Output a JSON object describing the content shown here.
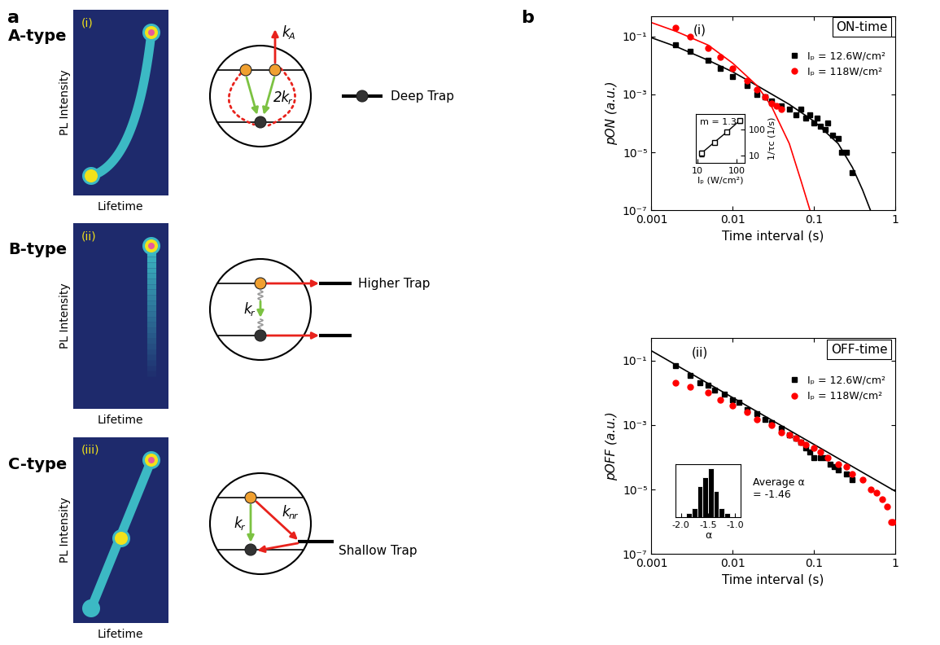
{
  "labels": [
    "a",
    "b"
  ],
  "panel_a": {
    "rows": [
      {
        "type_label": "A-type",
        "index": "(i)",
        "y_label": "PL Intensity",
        "x_label": "Lifetime",
        "rates": [
          {
            "main": "k",
            "sub": "A"
          },
          {
            "main": "2k",
            "sub": "r"
          }
        ],
        "trap": "Deep Trap"
      },
      {
        "type_label": "B-type",
        "index": "(ii)",
        "y_label": "PL Intensity",
        "x_label": "Lifetime",
        "rates": [
          {
            "main": "k",
            "sub": "r"
          }
        ],
        "trap": "Higher Trap"
      },
      {
        "type_label": "C-type",
        "index": "(iii)",
        "y_label": "PL Intensity",
        "x_label": "Lifetime",
        "rates": [
          {
            "main": "k",
            "sub": "r"
          },
          {
            "main": "k",
            "sub": "nr"
          }
        ],
        "trap": "Shallow Trap"
      }
    ]
  },
  "chart_data": [
    {
      "type": "scatter",
      "title": "ON-time",
      "panel_index": "(i)",
      "x_label": "Time interval (s)",
      "y_label": "pON (a.u.)",
      "log": true,
      "xlim": [
        0.001,
        1
      ],
      "ylim": [
        1e-07,
        0.5
      ],
      "xticks": [
        0.001,
        0.01,
        0.1,
        1
      ],
      "yticks": [
        {
          "value": 1e-07,
          "label": "10⁻⁷"
        },
        {
          "value": 1e-05,
          "label": "10⁻⁵"
        },
        {
          "value": 0.001,
          "label": "10⁻³"
        },
        {
          "value": 0.1,
          "label": "10⁻¹"
        }
      ],
      "legend": "upper right",
      "series": [
        {
          "name": "Iₚ = 12.6W/cm²",
          "color": "#000000",
          "marker": "square",
          "x": [
            0.002,
            0.003,
            0.005,
            0.007,
            0.01,
            0.015,
            0.02,
            0.025,
            0.03,
            0.04,
            0.05,
            0.06,
            0.07,
            0.08,
            0.09,
            0.1,
            0.11,
            0.12,
            0.14,
            0.15,
            0.17,
            0.2,
            0.22,
            0.25,
            0.3
          ],
          "values": [
            0.05,
            0.03,
            0.015,
            0.008,
            0.004,
            0.002,
            0.001,
            0.0008,
            0.0006,
            0.0004,
            0.0003,
            0.0002,
            0.0003,
            0.00015,
            0.0002,
            0.0001,
            0.00015,
            8e-05,
            6e-05,
            0.0001,
            4e-05,
            3e-05,
            1e-05,
            1e-05,
            2e-06
          ]
        },
        {
          "name": "Iₚ = 118W/cm²",
          "color": "#ff0000",
          "marker": "circle",
          "x": [
            0.002,
            0.003,
            0.005,
            0.007,
            0.01,
            0.015,
            0.02,
            0.025,
            0.03,
            0.035,
            0.04
          ],
          "values": [
            0.2,
            0.1,
            0.04,
            0.02,
            0.008,
            0.003,
            0.0015,
            0.0008,
            0.0005,
            0.0004,
            0.0003
          ]
        },
        {
          "type": "line",
          "color": "#000000",
          "line_style": "solid",
          "x": [
            0.001,
            0.002,
            0.005,
            0.01,
            0.02,
            0.05,
            0.1,
            0.2,
            0.3,
            0.4,
            0.5
          ],
          "values": [
            0.09,
            0.045,
            0.015,
            0.006,
            0.002,
            0.00045,
            0.00012,
            2e-05,
            3e-06,
            5e-07,
            1e-07
          ]
        },
        {
          "type": "line",
          "color": "#ff0000",
          "line_style": "solid",
          "x": [
            0.001,
            0.002,
            0.005,
            0.01,
            0.02,
            0.03,
            0.05,
            0.07,
            0.09
          ],
          "values": [
            0.3,
            0.15,
            0.05,
            0.012,
            0.002,
            0.0004,
            2e-05,
            1e-06,
            1e-07
          ]
        }
      ],
      "inset": {
        "type": "line",
        "x_label": "Iₚ (W/cm²)",
        "y_label": "1/τc (1/s)",
        "annotation": "m = 1.3",
        "log": true,
        "marker": "square",
        "color": "#000000",
        "x": [
          12.6,
          27,
          56,
          118
        ],
        "values": [
          12,
          32,
          80,
          220
        ],
        "errors": [
          3,
          5,
          12,
          40
        ],
        "xlim": [
          9,
          160
        ],
        "ylim": [
          5,
          400
        ],
        "xticks": [
          10,
          100
        ],
        "yticks": [
          10,
          100
        ]
      }
    },
    {
      "type": "scatter",
      "title": "OFF-time",
      "panel_index": "(ii)",
      "x_label": "Time interval (s)",
      "y_label": "pOFF (a.u.)",
      "log": true,
      "xlim": [
        0.001,
        1
      ],
      "ylim": [
        1e-07,
        0.5
      ],
      "xticks": [
        0.001,
        0.01,
        0.1,
        1
      ],
      "yticks": [
        {
          "value": 1e-07,
          "label": "10⁻⁷"
        },
        {
          "value": 1e-05,
          "label": "10⁻⁵"
        },
        {
          "value": 0.001,
          "label": "10⁻³"
        },
        {
          "value": 0.1,
          "label": "10⁻¹"
        }
      ],
      "legend": "upper right",
      "series": [
        {
          "name": "Iₚ = 12.6W/cm²",
          "color": "#000000",
          "marker": "square",
          "x": [
            0.002,
            0.003,
            0.004,
            0.005,
            0.006,
            0.008,
            0.01,
            0.012,
            0.015,
            0.02,
            0.025,
            0.03,
            0.04,
            0.05,
            0.06,
            0.07,
            0.08,
            0.09,
            0.1,
            0.12,
            0.14,
            0.16,
            0.18,
            0.2,
            0.25,
            0.3
          ],
          "values": [
            0.07,
            0.035,
            0.02,
            0.017,
            0.012,
            0.009,
            0.006,
            0.005,
            0.003,
            0.0022,
            0.0015,
            0.0012,
            0.0008,
            0.0005,
            0.0004,
            0.0003,
            0.0002,
            0.00015,
            0.0001,
            0.0001,
            0.0001,
            6e-05,
            5e-05,
            4e-05,
            3e-05,
            2e-05
          ]
        },
        {
          "name": "Iₚ = 118W/cm²",
          "color": "#ff0000",
          "marker": "circle",
          "x": [
            0.002,
            0.003,
            0.005,
            0.007,
            0.01,
            0.015,
            0.02,
            0.03,
            0.04,
            0.05,
            0.06,
            0.07,
            0.08,
            0.1,
            0.12,
            0.15,
            0.2,
            0.25,
            0.3,
            0.4,
            0.5,
            0.6,
            0.7,
            0.8,
            0.9,
            0.95
          ],
          "values": [
            0.02,
            0.015,
            0.01,
            0.006,
            0.004,
            0.0025,
            0.0015,
            0.001,
            0.0006,
            0.0005,
            0.0004,
            0.0003,
            0.00025,
            0.0002,
            0.00015,
            0.0001,
            6e-05,
            5e-05,
            3e-05,
            2e-05,
            1e-05,
            8e-06,
            5e-06,
            3e-06,
            1e-06,
            1e-06
          ]
        },
        {
          "type": "line",
          "color": "#000000",
          "line_style": "solid",
          "x": [
            0.001,
            1
          ],
          "values": [
            0.2,
            9e-06
          ]
        }
      ],
      "inset": {
        "type": "histogram",
        "x_label": "α",
        "annotation": "Average α\n= -1.46",
        "bins": [
          -1.9,
          -1.8,
          -1.7,
          -1.6,
          -1.5,
          -1.4,
          -1.3,
          -1.2,
          -1.1
        ],
        "counts": [
          1,
          2,
          7,
          9,
          11,
          6,
          2,
          1
        ],
        "color": "#000000",
        "xlim": [
          -2.1,
          -0.9
        ],
        "xticks": [
          -2.0,
          -1.5,
          -1.0
        ],
        "ylim": [
          0,
          12
        ],
        "tick_labels": "x"
      }
    }
  ]
}
